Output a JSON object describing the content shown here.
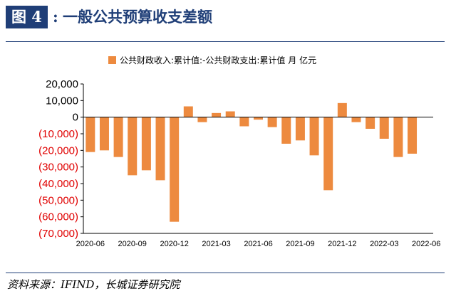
{
  "figure": {
    "label": "图 4",
    "colon": ":",
    "title": "一般公共预算收支差额",
    "source": "资料来源：IFIND，长城证券研究院"
  },
  "colors": {
    "bar": "#ED8A3F",
    "negative_tick": "#E00000",
    "positive_tick": "#000000",
    "header_blue": "#1F3E77"
  },
  "chart_data": {
    "type": "bar",
    "title": "",
    "legend": [
      "公共财政收入:累计值:-公共财政支出:累计值 月 亿元"
    ],
    "legend_position": "top",
    "xlabel": "",
    "ylabel": "",
    "ylim": [
      -70000,
      20000
    ],
    "yticks": [
      20000,
      10000,
      0,
      -10000,
      -20000,
      -30000,
      -40000,
      -50000,
      -60000,
      -70000
    ],
    "ytick_labels": [
      "20,000",
      "10,000",
      "0",
      "(10,000)",
      "(20,000)",
      "(30,000)",
      "(40,000)",
      "(50,000)",
      "(60,000)",
      "(70,000)"
    ],
    "categories": [
      "2020-06",
      "2020-07",
      "2020-08",
      "2020-09",
      "2020-10",
      "2020-11",
      "2020-12",
      "2021-01",
      "2021-02",
      "2021-03",
      "2021-04",
      "2021-05",
      "2021-06",
      "2021-07",
      "2021-08",
      "2021-09",
      "2021-10",
      "2021-11",
      "2021-12",
      "2022-01",
      "2022-02",
      "2022-03",
      "2022-04",
      "2022-05",
      "2022-06"
    ],
    "xtick_labels": [
      "2020-06",
      "2020-09",
      "2020-12",
      "2021-03",
      "2021-06",
      "2021-09",
      "2021-12",
      "2022-03",
      "2022-06"
    ],
    "xtick_indices": [
      0,
      3,
      6,
      9,
      12,
      15,
      18,
      21,
      24
    ],
    "series": [
      {
        "name": "公共财政收入:累计值:-公共财政支出:累计值 月 亿元",
        "values": [
          -21000,
          -20000,
          -24000,
          -35000,
          -32000,
          -38000,
          -63000,
          6500,
          -3000,
          2500,
          3500,
          -5500,
          -1500,
          -6000,
          -16000,
          -14000,
          -23000,
          -44000,
          8500,
          -3000,
          -7000,
          -13000,
          -24000,
          -22000,
          0
        ]
      }
    ]
  }
}
